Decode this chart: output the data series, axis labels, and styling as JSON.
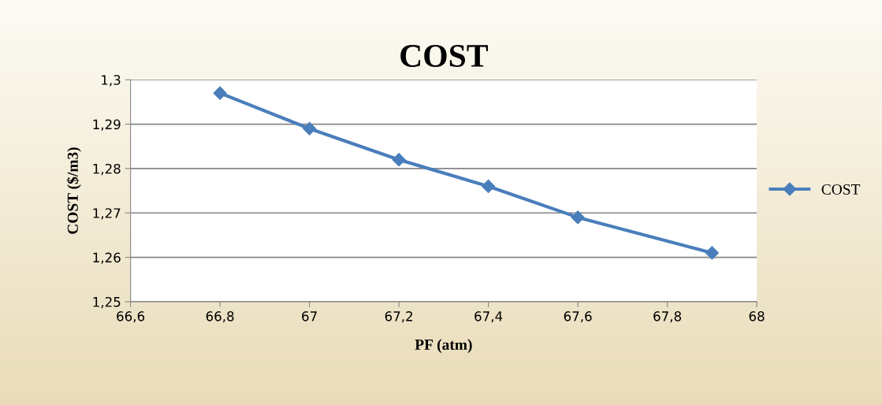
{
  "chart_data": {
    "type": "line",
    "title": "COST",
    "xlabel": "PF (atm)",
    "ylabel": "COST ($/m3)",
    "x": [
      66.8,
      67,
      67.2,
      67.4,
      67.6,
      67.9
    ],
    "series": [
      {
        "name": "COST",
        "color": "#4a7ebb",
        "values": [
          1.297,
          1.289,
          1.282,
          1.276,
          1.269,
          1.261
        ]
      }
    ],
    "xlim": [
      66.6,
      68
    ],
    "xticks": [
      {
        "value": 66.6,
        "label": "66,6"
      },
      {
        "value": 66.8,
        "label": "66,8"
      },
      67,
      {
        "value": 67.2,
        "label": "67,2"
      },
      {
        "value": 67.4,
        "label": "67,4"
      },
      {
        "value": 67.6,
        "label": "67,6"
      },
      {
        "value": 67.8,
        "label": "67,8"
      },
      68
    ],
    "ylim": [
      1.25,
      1.3
    ],
    "yticks": [
      {
        "value": 1.25,
        "label": "1,25"
      },
      {
        "value": 1.26,
        "label": "1,26"
      },
      {
        "value": 1.27,
        "label": "1,27"
      },
      {
        "value": 1.28,
        "label": "1,28"
      },
      {
        "value": 1.29,
        "label": "1,29"
      },
      {
        "value": 1.3,
        "label": "1,3"
      }
    ],
    "grid": "y",
    "legend": "right",
    "marker": "diamond",
    "line_style": "solid"
  }
}
